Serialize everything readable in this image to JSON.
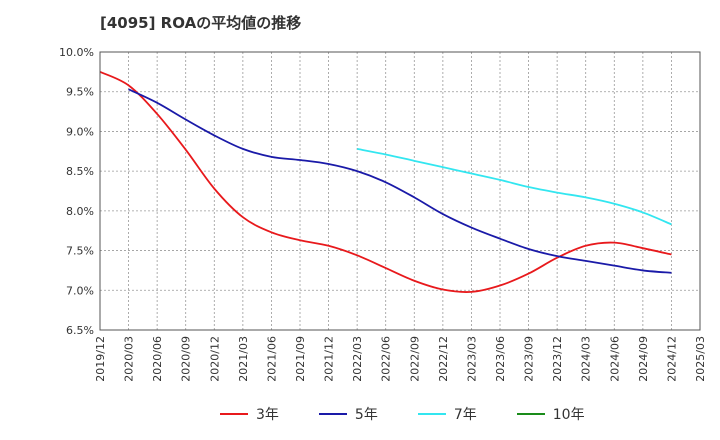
{
  "title": "[4095]  ROAの平均値の推移",
  "chart_data": {
    "type": "line",
    "title": "[4095]  ROAの平均値の推移",
    "xlabel": "",
    "ylabel": "",
    "ylim": [
      6.5,
      10.0
    ],
    "y_ticks": [
      "10.0%",
      "9.5%",
      "9.0%",
      "8.5%",
      "8.0%",
      "7.5%",
      "7.0%",
      "6.5%"
    ],
    "x_ticks": [
      "2019/12",
      "2020/03",
      "2020/06",
      "2020/09",
      "2020/12",
      "2021/03",
      "2021/06",
      "2021/09",
      "2021/12",
      "2022/03",
      "2022/06",
      "2022/09",
      "2022/12",
      "2023/03",
      "2023/06",
      "2023/09",
      "2023/12",
      "2024/03",
      "2024/06",
      "2024/09",
      "2024/12",
      "2025/03"
    ],
    "grid": true,
    "legend_position": "bottom",
    "series": [
      {
        "name": "3年",
        "color": "#e8191c",
        "x": [
          "2019/12",
          "2020/03",
          "2020/06",
          "2020/09",
          "2020/12",
          "2021/03",
          "2021/06",
          "2021/09",
          "2021/12",
          "2022/03",
          "2022/06",
          "2022/09",
          "2022/12",
          "2023/03",
          "2023/06",
          "2023/09",
          "2023/12",
          "2024/03",
          "2024/06",
          "2024/09",
          "2024/12"
        ],
        "values": [
          9.75,
          9.58,
          9.22,
          8.77,
          8.28,
          7.92,
          7.73,
          7.63,
          7.56,
          7.44,
          7.28,
          7.12,
          7.01,
          6.98,
          7.06,
          7.21,
          7.41,
          7.56,
          7.6,
          7.53,
          7.45
        ]
      },
      {
        "name": "5年",
        "color": "#1a1aa8",
        "x": [
          "2020/03",
          "2020/06",
          "2020/09",
          "2020/12",
          "2021/03",
          "2021/06",
          "2021/09",
          "2021/12",
          "2022/03",
          "2022/06",
          "2022/09",
          "2022/12",
          "2023/03",
          "2023/06",
          "2023/09",
          "2023/12",
          "2024/03",
          "2024/06",
          "2024/09",
          "2024/12"
        ],
        "values": [
          9.53,
          9.36,
          9.15,
          8.95,
          8.78,
          8.68,
          8.64,
          8.59,
          8.5,
          8.36,
          8.17,
          7.96,
          7.79,
          7.65,
          7.52,
          7.43,
          7.37,
          7.31,
          7.25,
          7.22
        ]
      },
      {
        "name": "7年",
        "color": "#33e6f0",
        "x": [
          "2022/03",
          "2022/06",
          "2022/09",
          "2022/12",
          "2023/03",
          "2023/06",
          "2023/09",
          "2023/12",
          "2024/03",
          "2024/06",
          "2024/09",
          "2024/12"
        ],
        "values": [
          8.78,
          8.71,
          8.63,
          8.55,
          8.47,
          8.39,
          8.3,
          8.23,
          8.17,
          8.09,
          7.98,
          7.83
        ]
      },
      {
        "name": "10年",
        "color": "#1a8c1a",
        "x": [],
        "values": []
      }
    ]
  }
}
